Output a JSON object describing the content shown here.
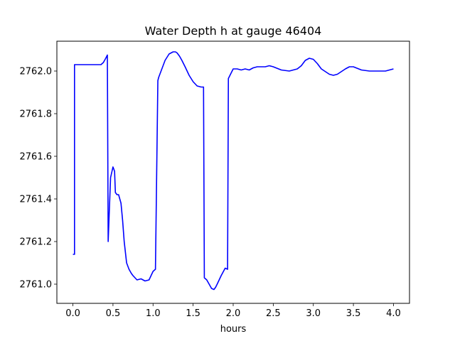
{
  "chart_data": {
    "type": "line",
    "title": "Water Depth h at gauge 46404",
    "xlabel": "hours",
    "ylabel": "",
    "xlim": [
      -0.2,
      4.2
    ],
    "ylim": [
      2760.91,
      2762.14
    ],
    "x_ticks": [
      0.0,
      0.5,
      1.0,
      1.5,
      2.0,
      2.5,
      3.0,
      3.5,
      4.0
    ],
    "x_tick_labels": [
      "0.0",
      "0.5",
      "1.0",
      "1.5",
      "2.0",
      "2.5",
      "3.0",
      "3.5",
      "4.0"
    ],
    "y_ticks": [
      2761.0,
      2761.2,
      2761.4,
      2761.6,
      2761.8,
      2762.0
    ],
    "y_tick_labels": [
      "2761.0",
      "2761.2",
      "2761.4",
      "2761.6",
      "2761.8",
      "2762.0"
    ],
    "grid": false,
    "legend": "none",
    "series": [
      {
        "color": "#0000ff",
        "x": [
          0.0,
          0.02,
          0.02,
          0.05,
          0.1,
          0.2,
          0.3,
          0.35,
          0.38,
          0.41,
          0.43,
          0.44,
          0.45,
          0.47,
          0.5,
          0.52,
          0.53,
          0.55,
          0.57,
          0.6,
          0.62,
          0.64,
          0.67,
          0.7,
          0.73,
          0.75,
          0.8,
          0.85,
          0.9,
          0.95,
          1.0,
          1.03,
          1.06,
          1.07,
          1.1,
          1.15,
          1.2,
          1.25,
          1.28,
          1.3,
          1.33,
          1.36,
          1.4,
          1.45,
          1.5,
          1.55,
          1.6,
          1.63,
          1.64,
          1.67,
          1.7,
          1.73,
          1.76,
          1.78,
          1.8,
          1.85,
          1.9,
          1.93,
          1.94,
          1.96,
          2.0,
          2.05,
          2.1,
          2.15,
          2.2,
          2.25,
          2.3,
          2.4,
          2.45,
          2.5,
          2.6,
          2.7,
          2.8,
          2.85,
          2.9,
          2.95,
          3.0,
          3.05,
          3.1,
          3.2,
          3.25,
          3.3,
          3.4,
          3.45,
          3.5,
          3.6,
          3.7,
          3.8,
          3.9,
          4.0
        ],
        "y": [
          2761.14,
          2761.14,
          2762.03,
          2762.03,
          2762.03,
          2762.03,
          2762.03,
          2762.03,
          2762.04,
          2762.06,
          2762.075,
          2761.2,
          2761.3,
          2761.5,
          2761.55,
          2761.53,
          2761.43,
          2761.42,
          2761.42,
          2761.38,
          2761.3,
          2761.2,
          2761.1,
          2761.07,
          2761.05,
          2761.04,
          2761.02,
          2761.025,
          2761.015,
          2761.02,
          2761.06,
          2761.07,
          2761.955,
          2761.97,
          2762.0,
          2762.05,
          2762.08,
          2762.09,
          2762.09,
          2762.085,
          2762.07,
          2762.05,
          2762.02,
          2761.98,
          2761.95,
          2761.93,
          2761.925,
          2761.925,
          2761.03,
          2761.02,
          2761.0,
          2760.98,
          2760.975,
          2760.985,
          2761.0,
          2761.04,
          2761.075,
          2761.07,
          2761.965,
          2761.98,
          2762.01,
          2762.01,
          2762.005,
          2762.01,
          2762.005,
          2762.015,
          2762.02,
          2762.02,
          2762.025,
          2762.02,
          2762.005,
          2762.0,
          2762.01,
          2762.025,
          2762.05,
          2762.06,
          2762.055,
          2762.035,
          2762.01,
          2761.985,
          2761.98,
          2761.985,
          2762.01,
          2762.02,
          2762.02,
          2762.005,
          2762.0,
          2762.0,
          2762.0,
          2762.01
        ]
      }
    ]
  }
}
